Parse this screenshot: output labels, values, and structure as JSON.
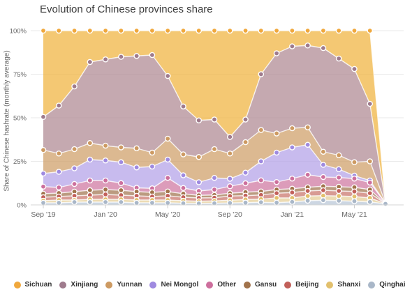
{
  "title": "Evolution of Chinese provinces share",
  "y_axis_label": "Share of Chinese hashrate (monthly average)",
  "chart_data": {
    "type": "area",
    "stacked": true,
    "n_points": 23,
    "x_range_note": "monthly points from Sep 2019 to Jul 2021",
    "x_ticks": [
      {
        "i": 0,
        "label": "Sep '19"
      },
      {
        "i": 4,
        "label": "Jan '20"
      },
      {
        "i": 8,
        "label": "May '20"
      },
      {
        "i": 12,
        "label": "Sep '20"
      },
      {
        "i": 16,
        "label": "Jan '21"
      },
      {
        "i": 20,
        "label": "May '21"
      }
    ],
    "y_ticks": [
      {
        "v": 0,
        "label": "0%"
      },
      {
        "v": 25,
        "label": "25%"
      },
      {
        "v": 50,
        "label": "50%"
      },
      {
        "v": 75,
        "label": "75%"
      },
      {
        "v": 100,
        "label": "100%"
      }
    ],
    "ylim": [
      0,
      100
    ],
    "legend_position": "bottom",
    "series": [
      {
        "label": "Sichuan",
        "color": "#f0a83d",
        "fill": "#f0b037",
        "values": [
          49.5,
          43,
          32,
          18,
          16.5,
          15,
          14.5,
          14,
          26,
          43.5,
          51.5,
          51,
          61,
          51,
          25,
          13,
          9,
          8.5,
          10,
          16,
          22,
          42,
          0.05
        ]
      },
      {
        "label": "Xinjiang",
        "color": "#9f7b8d",
        "fill": "#ac848e",
        "values": [
          19,
          27.5,
          36,
          46.5,
          49.5,
          52,
          53,
          56,
          36,
          27.5,
          21,
          17,
          9.5,
          13,
          32,
          46,
          47,
          47,
          59.5,
          55.5,
          53.5,
          33,
          0.05
        ]
      },
      {
        "label": "Yunnan",
        "color": "#cd9a62",
        "fill": "#cd9b63",
        "values": [
          13.5,
          10.5,
          11,
          9.5,
          8.5,
          8.5,
          11,
          8,
          12,
          12,
          14.5,
          16.5,
          14.5,
          17.5,
          18,
          11,
          11,
          10,
          7.5,
          8,
          7.7,
          11,
          0.1
        ]
      },
      {
        "label": "Nei Mongol",
        "color": "#9f8ae0",
        "fill": "#b09ee7",
        "values": [
          7.5,
          9,
          9,
          12,
          11.5,
          12,
          11.7,
          12.5,
          10.5,
          7.3,
          5,
          6.7,
          4.3,
          6.1,
          10.9,
          16.9,
          17.9,
          17.2,
          7,
          4.8,
          1.7,
          1.2,
          0.1
        ]
      },
      {
        "label": "Other",
        "color": "#cd6f9d",
        "fill": "#cd729c",
        "values": [
          4.1,
          3.2,
          4.4,
          5.6,
          5.2,
          4.1,
          2.2,
          2.3,
          7.8,
          3.3,
          2.5,
          3.1,
          4,
          5.1,
          6.4,
          4.3,
          5.8,
          7.2,
          5.3,
          5.3,
          5,
          4,
          0.1
        ]
      },
      {
        "label": "Gansu",
        "color": "#a1734b",
        "fill": "#9e704a",
        "values": [
          2,
          2,
          2.4,
          2.8,
          2.8,
          2.8,
          2.4,
          2.4,
          2.5,
          2,
          1.5,
          1.6,
          1.6,
          2,
          2,
          2.1,
          2.2,
          2.1,
          2.3,
          2.4,
          2.4,
          2.1,
          0.06
        ]
      },
      {
        "label": "Beijing",
        "color": "#c2605a",
        "fill": "#c77066",
        "values": [
          2,
          2,
          2.4,
          2.4,
          2.8,
          2.4,
          2.4,
          2,
          2.4,
          2,
          1.9,
          1.8,
          2.4,
          2.2,
          2.4,
          2.7,
          3.1,
          2.9,
          3.1,
          2.9,
          2.9,
          2.7,
          0.07
        ]
      },
      {
        "label": "Shanxi",
        "color": "#e2c06d",
        "fill": "#e4cc94",
        "values": [
          1.2,
          1.6,
          1.2,
          1.6,
          1.6,
          1.6,
          1.6,
          1.6,
          1.6,
          1.5,
          1.3,
          1.4,
          1.6,
          1.8,
          1.8,
          2.7,
          2.3,
          2.7,
          2.6,
          2.7,
          2.7,
          2.3,
          0.07
        ]
      },
      {
        "label": "Qinghai",
        "color": "#a9b7c8",
        "fill": "#b6c4d5",
        "values": [
          1.2,
          1.2,
          1.6,
          1.6,
          1.6,
          1.6,
          1.2,
          1.2,
          1.2,
          0.9,
          0.8,
          0.9,
          1.1,
          1.3,
          1.5,
          1.3,
          1.7,
          2.4,
          2.7,
          2.4,
          2.1,
          1.7,
          0.6
        ]
      }
    ]
  }
}
